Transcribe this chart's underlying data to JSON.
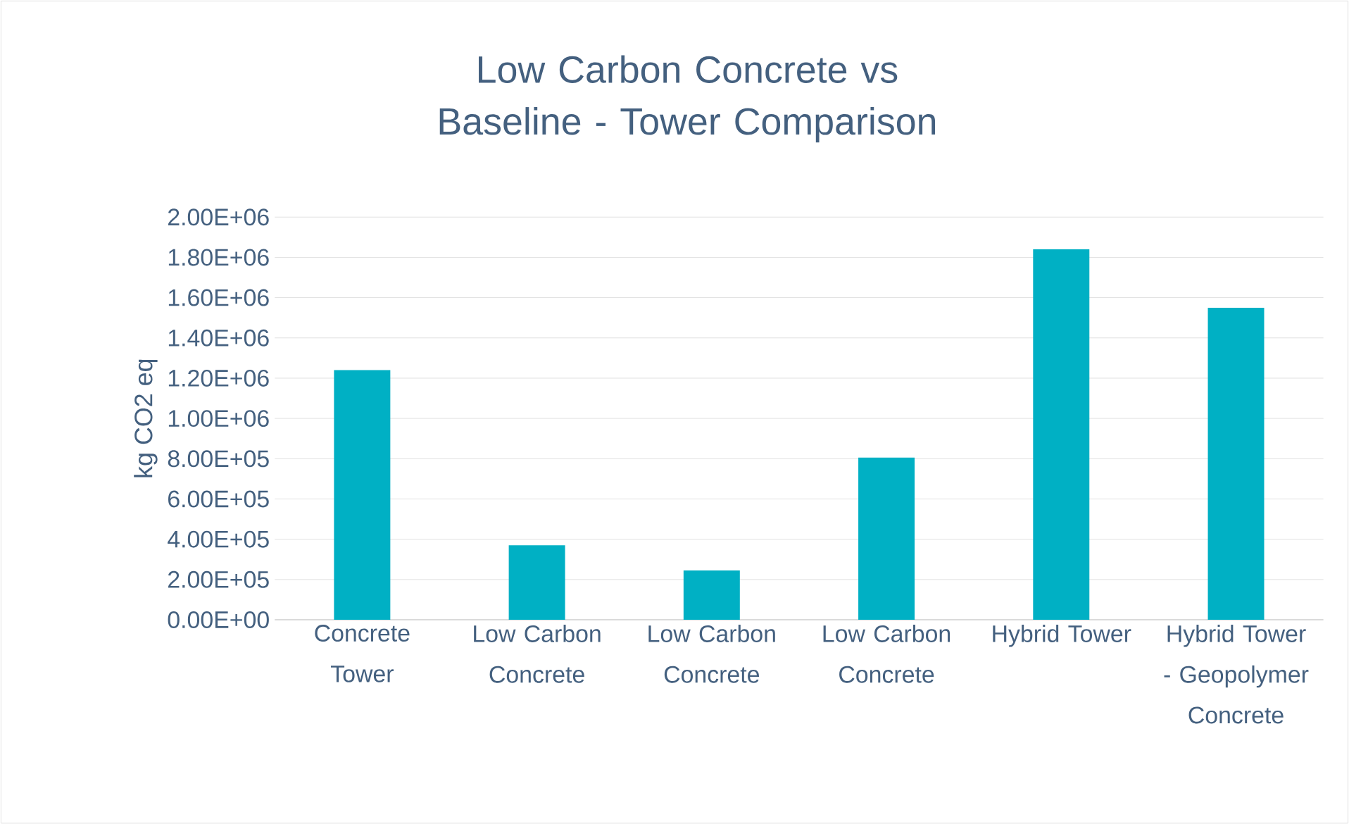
{
  "chart_data": {
    "type": "bar",
    "title": "Low Carbon Concrete vs Baseline - Tower Comparison",
    "ylabel": "kg CO2 eq",
    "categories": [
      "Concrete Tower",
      "Low Carbon Concrete",
      "Low Carbon Concrete",
      "Low Carbon Concrete",
      "Hybrid Tower",
      "Hybrid Tower - Geopolymer Concrete"
    ],
    "values": [
      1240000,
      370000,
      245000,
      805000,
      1840000,
      1550000
    ],
    "color": "#00b0c4",
    "ylim": [
      0,
      2000000
    ],
    "yticks": [
      {
        "value": 0,
        "label": "0.00E+00"
      },
      {
        "value": 200000,
        "label": "2.00E+05"
      },
      {
        "value": 400000,
        "label": "4.00E+05"
      },
      {
        "value": 600000,
        "label": "6.00E+05"
      },
      {
        "value": 800000,
        "label": "8.00E+05"
      },
      {
        "value": 1000000,
        "label": "1.00E+06"
      },
      {
        "value": 1200000,
        "label": "1.20E+06"
      },
      {
        "value": 1400000,
        "label": "1.40E+06"
      },
      {
        "value": 1600000,
        "label": "1.60E+06"
      },
      {
        "value": 1800000,
        "label": "1.80E+06"
      },
      {
        "value": 2000000,
        "label": "2.00E+06"
      }
    ],
    "grid": "y"
  }
}
